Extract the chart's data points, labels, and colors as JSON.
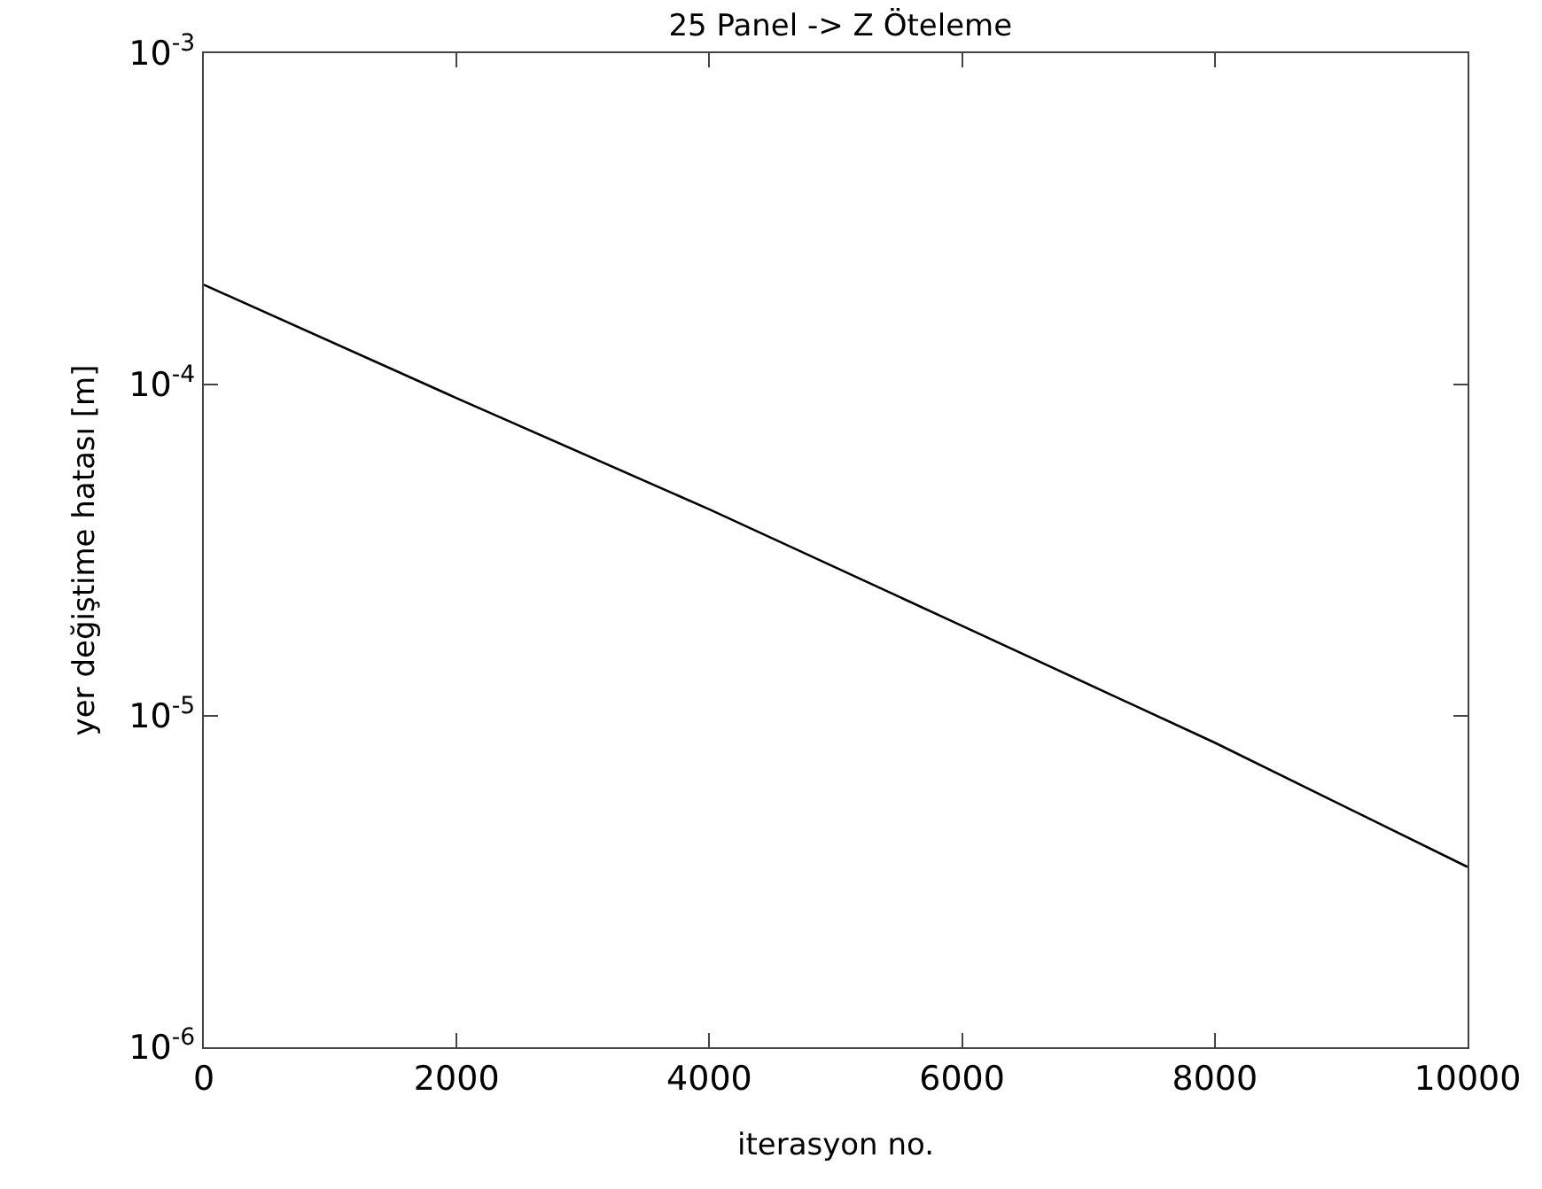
{
  "chart_data": {
    "type": "line",
    "title": "25 Panel -> Z Öteleme",
    "xlabel": "iterasyon no.",
    "ylabel": "yer değiştime hatası [m]",
    "x": [
      0,
      2000,
      4000,
      6000,
      8000,
      10000
    ],
    "series": [
      {
        "color": "#000000",
        "values": [
          0.0002,
          9.1e-05,
          4.2e-05,
          1.87e-05,
          8.3e-06,
          3.5e-06
        ]
      }
    ],
    "xlim": [
      0,
      10000
    ],
    "xticks": [
      0,
      2000,
      4000,
      6000,
      8000,
      10000
    ],
    "ylim": [
      1e-06,
      0.001
    ],
    "yticks": [
      {
        "value": 1e-06,
        "label": "10$^{-6}$"
      },
      {
        "value": 1e-05,
        "label": "10$^{-5}$"
      },
      {
        "value": 0.0001,
        "label": "10$^{-4}$"
      },
      {
        "value": 0.001,
        "label": "10$^{-3}$"
      }
    ],
    "log": true,
    "grid": false,
    "marker": "none",
    "line_style": "solid"
  }
}
